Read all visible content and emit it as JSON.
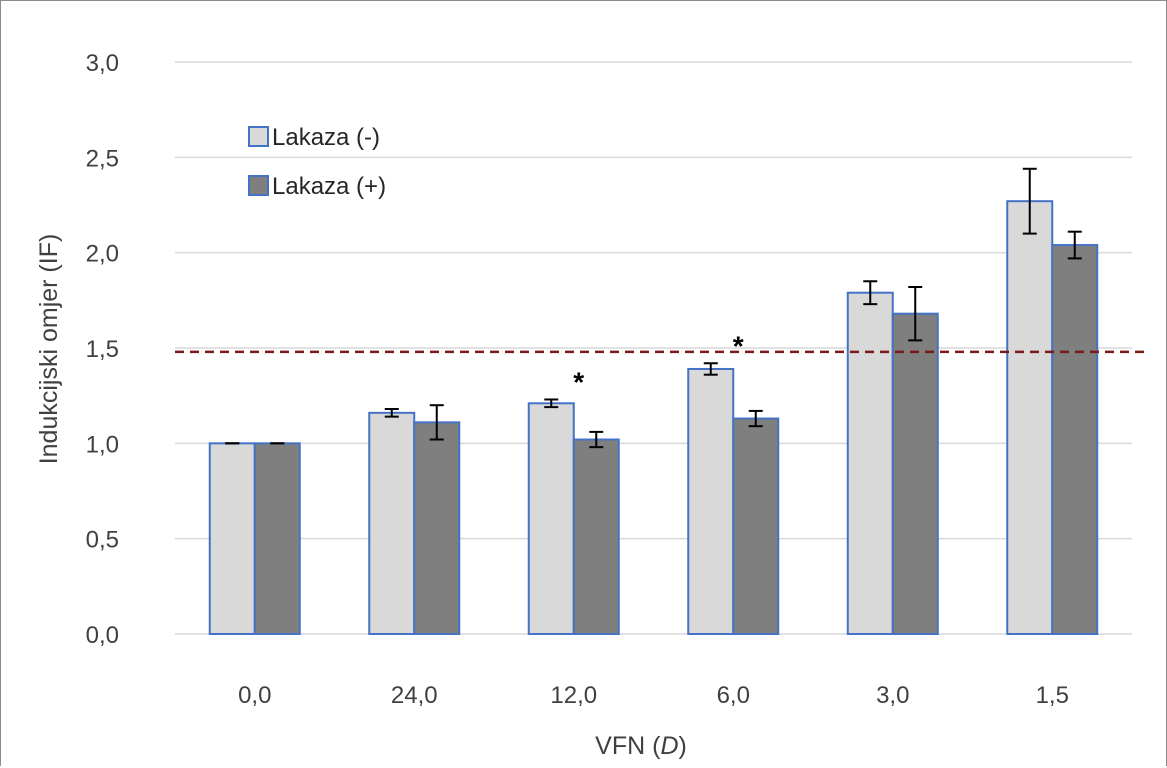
{
  "chart_data": {
    "type": "bar",
    "ylabel": "Indukcijski omjer (IF)",
    "xlabel_main": "VFN (",
    "xlabel_italic": "D",
    "xlabel_end": ")",
    "categories": [
      "0,0",
      "24,0",
      "12,0",
      "6,0",
      "3,0",
      "1,5"
    ],
    "ylim": [
      0,
      3
    ],
    "y_ticks": [
      "0,0",
      "0,5",
      "1,0",
      "1,5",
      "2,0",
      "2,5",
      "3,0"
    ],
    "y_tick_values": [
      0,
      0.5,
      1.0,
      1.5,
      2.0,
      2.5,
      3.0
    ],
    "grid": true,
    "legend_position": "top-left",
    "series": [
      {
        "name": "Lakaza (-)",
        "color": "#d9d9d9",
        "values": [
          1.0,
          1.16,
          1.21,
          1.39,
          1.79,
          2.27
        ],
        "errors": [
          0.0,
          0.02,
          0.02,
          0.03,
          0.06,
          0.17
        ]
      },
      {
        "name": "Lakaza (+)",
        "color": "#7f7f7f",
        "values": [
          1.0,
          1.11,
          1.02,
          1.13,
          1.68,
          2.04
        ],
        "errors": [
          0.0,
          0.09,
          0.04,
          0.04,
          0.14,
          0.07
        ]
      }
    ],
    "bar_outline_color": "#4472c4",
    "threshold": {
      "value": 1.5,
      "color": "#7b1a1a",
      "style": "dashed"
    },
    "annotations": [
      {
        "text": "*",
        "category_index": 2
      },
      {
        "text": "*",
        "category_index": 3
      }
    ]
  }
}
